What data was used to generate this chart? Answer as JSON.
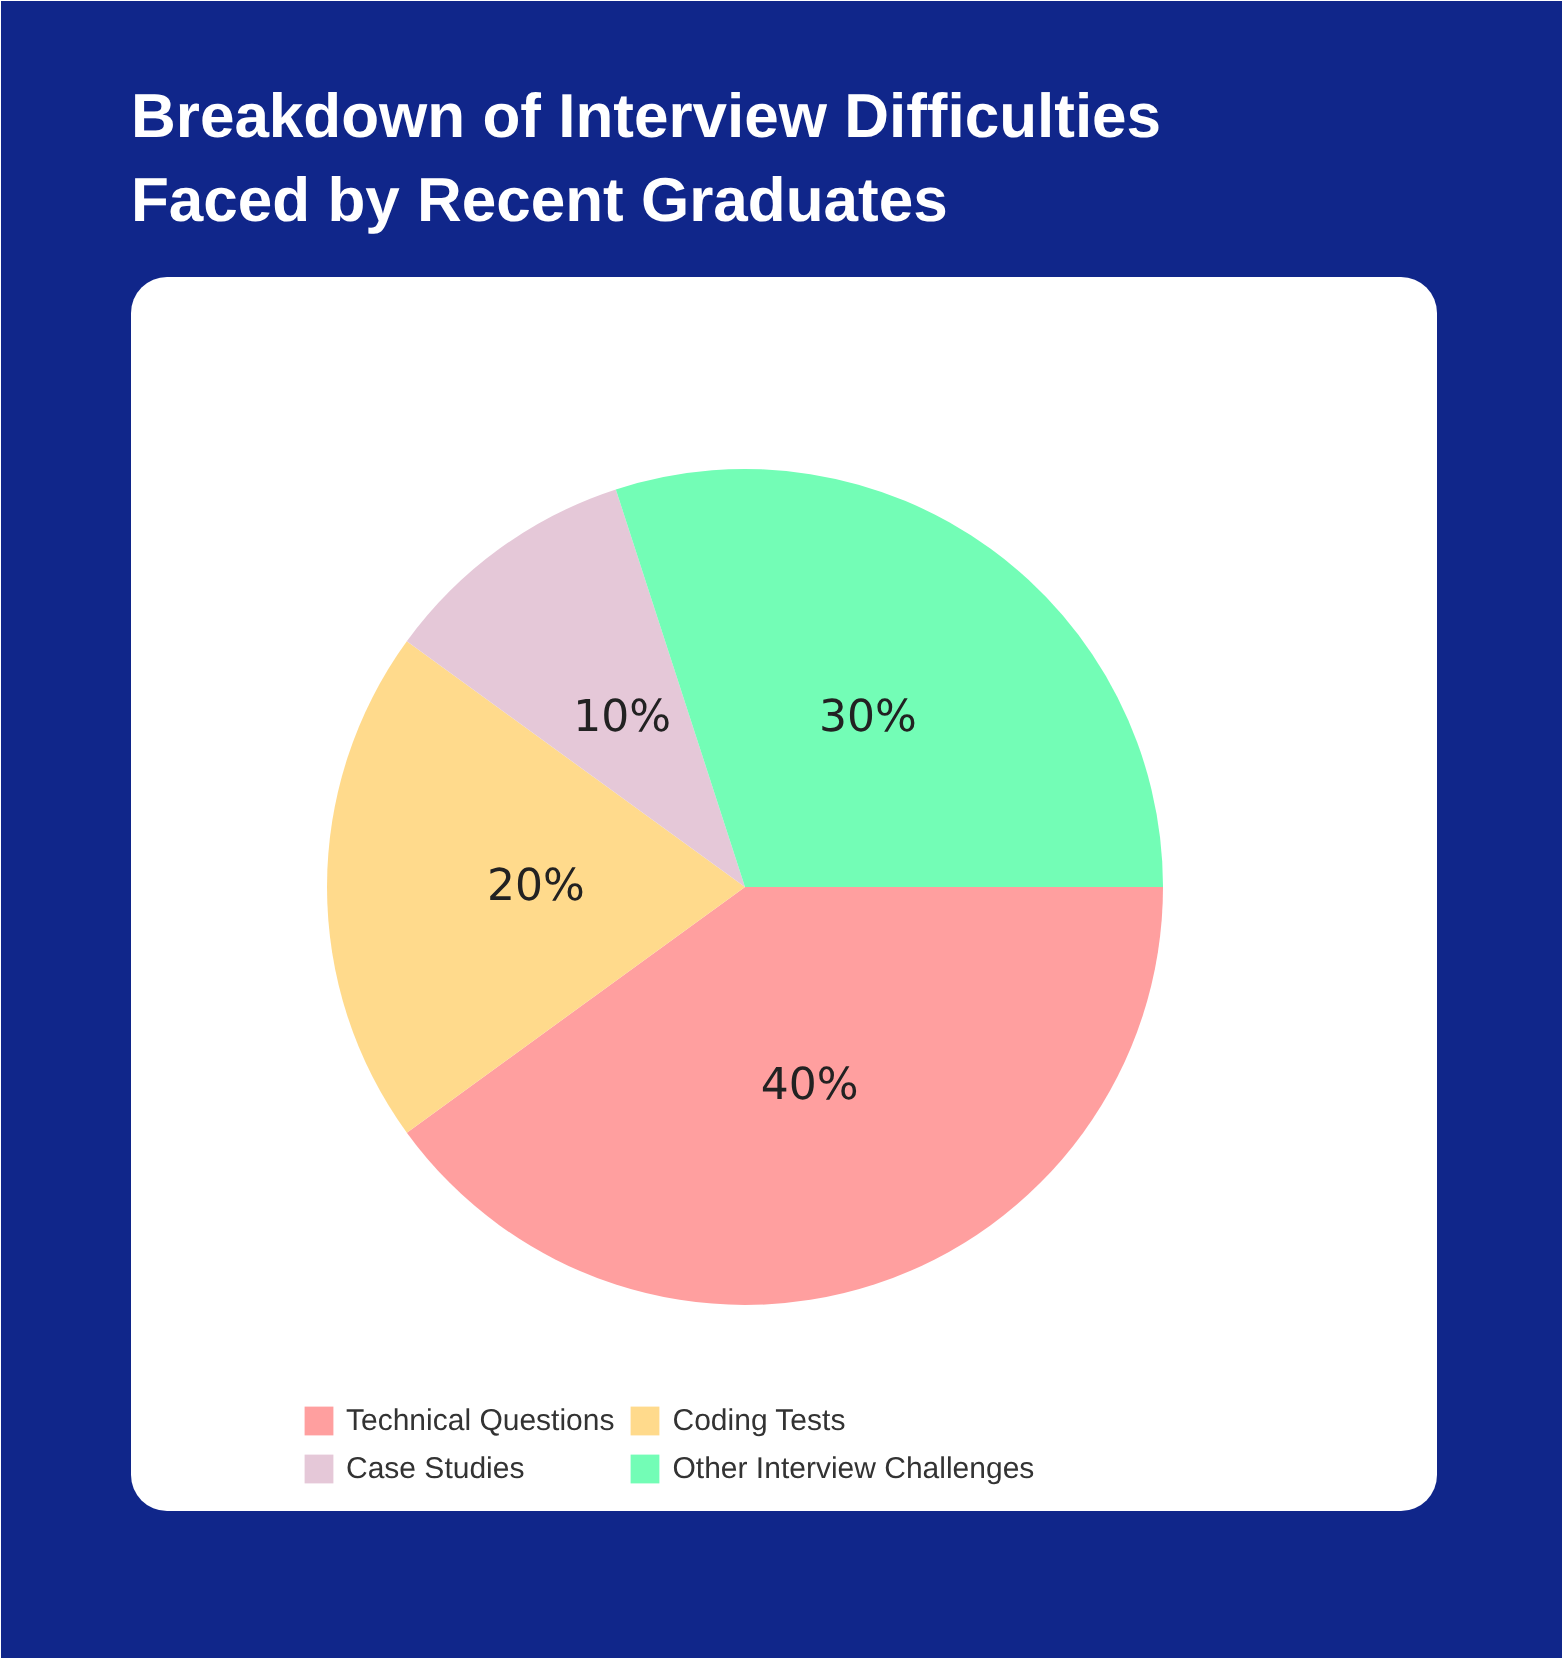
{
  "chart_data": {
    "type": "pie",
    "title": "Breakdown of Interview Difficulties\nFaced by Recent Graduates",
    "categories": [
      "Technical Questions",
      "Coding Tests",
      "Case Studies",
      "Other Interview Challenges"
    ],
    "values": [
      40,
      20,
      10,
      30
    ],
    "colors": [
      "#ff9f9f",
      "#ffda8c",
      "#e5c8d8",
      "#73fdb6"
    ],
    "value_labels": [
      "40%",
      "20%",
      "10%",
      "30%"
    ],
    "legend": "bottom"
  }
}
